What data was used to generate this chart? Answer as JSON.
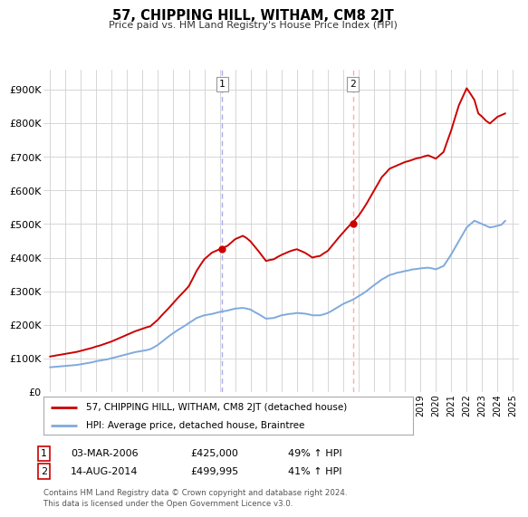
{
  "title": "57, CHIPPING HILL, WITHAM, CM8 2JT",
  "subtitle": "Price paid vs. HM Land Registry's House Price Index (HPI)",
  "ylabel_ticks": [
    "£0",
    "£100K",
    "£200K",
    "£300K",
    "£400K",
    "£500K",
    "£600K",
    "£700K",
    "£800K",
    "£900K"
  ],
  "ytick_values": [
    0,
    100000,
    200000,
    300000,
    400000,
    500000,
    600000,
    700000,
    800000,
    900000
  ],
  "ylim": [
    0,
    960000
  ],
  "xlim_start": 1994.6,
  "xlim_end": 2025.4,
  "background_color": "#ffffff",
  "grid_color": "#d0d0d0",
  "hpi_color": "#7faadd",
  "price_color": "#cc0000",
  "vline1_color": "#aaaaee",
  "vline2_color": "#ffaaaa",
  "marker1_x": 2006.17,
  "marker1_y": 425000,
  "marker1_label": "1",
  "marker2_x": 2014.62,
  "marker2_y": 499995,
  "marker2_label": "2",
  "legend_label1": "57, CHIPPING HILL, WITHAM, CM8 2JT (detached house)",
  "legend_label2": "HPI: Average price, detached house, Braintree",
  "annotation1": [
    "1",
    "03-MAR-2006",
    "£425,000",
    "49% ↑ HPI"
  ],
  "annotation2": [
    "2",
    "14-AUG-2014",
    "£499,995",
    "41% ↑ HPI"
  ],
  "footer": "Contains HM Land Registry data © Crown copyright and database right 2024.\nThis data is licensed under the Open Government Licence v3.0.",
  "hpi_data_x": [
    1995.0,
    1995.25,
    1995.5,
    1995.75,
    1996.0,
    1996.25,
    1996.5,
    1996.75,
    1997.0,
    1997.25,
    1997.5,
    1997.75,
    1998.0,
    1998.25,
    1998.5,
    1998.75,
    1999.0,
    1999.25,
    1999.5,
    1999.75,
    2000.0,
    2000.25,
    2000.5,
    2000.75,
    2001.0,
    2001.25,
    2001.5,
    2001.75,
    2002.0,
    2002.25,
    2002.5,
    2002.75,
    2003.0,
    2003.25,
    2003.5,
    2003.75,
    2004.0,
    2004.25,
    2004.5,
    2004.75,
    2005.0,
    2005.25,
    2005.5,
    2005.75,
    2006.0,
    2006.25,
    2006.5,
    2006.75,
    2007.0,
    2007.25,
    2007.5,
    2007.75,
    2008.0,
    2008.25,
    2008.5,
    2008.75,
    2009.0,
    2009.25,
    2009.5,
    2009.75,
    2010.0,
    2010.25,
    2010.5,
    2010.75,
    2011.0,
    2011.25,
    2011.5,
    2011.75,
    2012.0,
    2012.25,
    2012.5,
    2012.75,
    2013.0,
    2013.25,
    2013.5,
    2013.75,
    2014.0,
    2014.25,
    2014.5,
    2014.75,
    2015.0,
    2015.25,
    2015.5,
    2015.75,
    2016.0,
    2016.25,
    2016.5,
    2016.75,
    2017.0,
    2017.25,
    2017.5,
    2017.75,
    2018.0,
    2018.25,
    2018.5,
    2018.75,
    2019.0,
    2019.25,
    2019.5,
    2019.75,
    2020.0,
    2020.25,
    2020.5,
    2020.75,
    2021.0,
    2021.25,
    2021.5,
    2021.75,
    2022.0,
    2022.25,
    2022.5,
    2022.75,
    2023.0,
    2023.25,
    2023.5,
    2023.75,
    2024.0,
    2024.25,
    2024.5
  ],
  "hpi_data_y": [
    73000,
    74000,
    75000,
    76000,
    77000,
    78000,
    79000,
    80000,
    82000,
    84000,
    86000,
    88000,
    91000,
    93000,
    95000,
    97000,
    100000,
    103000,
    106000,
    109000,
    112000,
    115000,
    118000,
    120000,
    122000,
    124000,
    127000,
    133000,
    140000,
    149000,
    158000,
    167000,
    175000,
    183000,
    190000,
    197000,
    205000,
    212000,
    220000,
    224000,
    228000,
    230000,
    232000,
    235000,
    238000,
    240000,
    242000,
    245000,
    248000,
    249000,
    250000,
    248000,
    245000,
    238000,
    232000,
    225000,
    218000,
    219000,
    220000,
    224000,
    228000,
    230000,
    232000,
    233000,
    235000,
    234000,
    233000,
    231000,
    228000,
    228000,
    228000,
    231000,
    235000,
    241000,
    248000,
    255000,
    262000,
    267000,
    272000,
    278000,
    285000,
    292000,
    300000,
    309000,
    318000,
    326000,
    335000,
    341000,
    348000,
    351000,
    355000,
    357000,
    360000,
    362000,
    365000,
    366000,
    368000,
    369000,
    370000,
    368000,
    365000,
    370000,
    375000,
    392000,
    410000,
    430000,
    450000,
    470000,
    490000,
    500000,
    510000,
    505000,
    500000,
    495000,
    490000,
    492000,
    495000,
    498000,
    510000
  ],
  "price_data_x": [
    1995.0,
    1995.25,
    1995.5,
    1995.75,
    1996.0,
    1996.25,
    1996.5,
    1996.75,
    1997.0,
    1997.25,
    1997.5,
    1997.75,
    1998.0,
    1998.25,
    1998.5,
    1998.75,
    1999.0,
    1999.25,
    1999.5,
    1999.75,
    2000.0,
    2000.25,
    2000.5,
    2000.75,
    2001.0,
    2001.25,
    2001.5,
    2001.75,
    2002.0,
    2002.25,
    2002.5,
    2002.75,
    2003.0,
    2003.25,
    2003.5,
    2003.75,
    2004.0,
    2004.25,
    2004.5,
    2004.75,
    2005.0,
    2005.25,
    2005.5,
    2005.75,
    2006.0,
    2006.25,
    2006.5,
    2006.75,
    2007.0,
    2007.25,
    2007.5,
    2007.75,
    2008.0,
    2008.25,
    2008.5,
    2008.75,
    2009.0,
    2009.25,
    2009.5,
    2009.75,
    2010.0,
    2010.25,
    2010.5,
    2010.75,
    2011.0,
    2011.25,
    2011.5,
    2011.75,
    2012.0,
    2012.25,
    2012.5,
    2012.75,
    2013.0,
    2013.25,
    2013.5,
    2013.75,
    2014.0,
    2014.25,
    2014.5,
    2014.75,
    2015.0,
    2015.25,
    2015.5,
    2015.75,
    2016.0,
    2016.25,
    2016.5,
    2016.75,
    2017.0,
    2017.25,
    2017.5,
    2017.75,
    2018.0,
    2018.25,
    2018.5,
    2018.75,
    2019.0,
    2019.25,
    2019.5,
    2019.75,
    2020.0,
    2020.25,
    2020.5,
    2020.75,
    2021.0,
    2021.25,
    2021.5,
    2021.75,
    2022.0,
    2022.25,
    2022.5,
    2022.75,
    2023.0,
    2023.25,
    2023.5,
    2023.75,
    2024.0,
    2024.25,
    2024.5
  ],
  "price_data_y": [
    105000,
    107000,
    109000,
    111000,
    113000,
    115000,
    117000,
    119000,
    122000,
    125000,
    128000,
    131000,
    135000,
    138000,
    142000,
    146000,
    150000,
    155000,
    160000,
    165000,
    170000,
    175000,
    180000,
    184000,
    188000,
    192000,
    195000,
    205000,
    215000,
    228000,
    240000,
    252000,
    265000,
    278000,
    290000,
    302000,
    315000,
    337000,
    360000,
    378000,
    395000,
    405000,
    415000,
    420000,
    425000,
    430000,
    435000,
    445000,
    455000,
    460000,
    465000,
    458000,
    448000,
    434000,
    420000,
    405000,
    390000,
    393000,
    395000,
    402000,
    408000,
    413000,
    418000,
    422000,
    425000,
    420000,
    415000,
    408000,
    400000,
    403000,
    405000,
    413000,
    420000,
    434000,
    448000,
    462000,
    475000,
    488000,
    500000,
    512000,
    525000,
    542000,
    560000,
    580000,
    600000,
    620000,
    640000,
    652000,
    665000,
    670000,
    675000,
    680000,
    685000,
    688000,
    692000,
    696000,
    698000,
    702000,
    705000,
    700000,
    695000,
    705000,
    715000,
    748000,
    780000,
    818000,
    855000,
    880000,
    905000,
    888000,
    870000,
    830000,
    820000,
    808000,
    800000,
    810000,
    820000,
    825000,
    830000
  ]
}
